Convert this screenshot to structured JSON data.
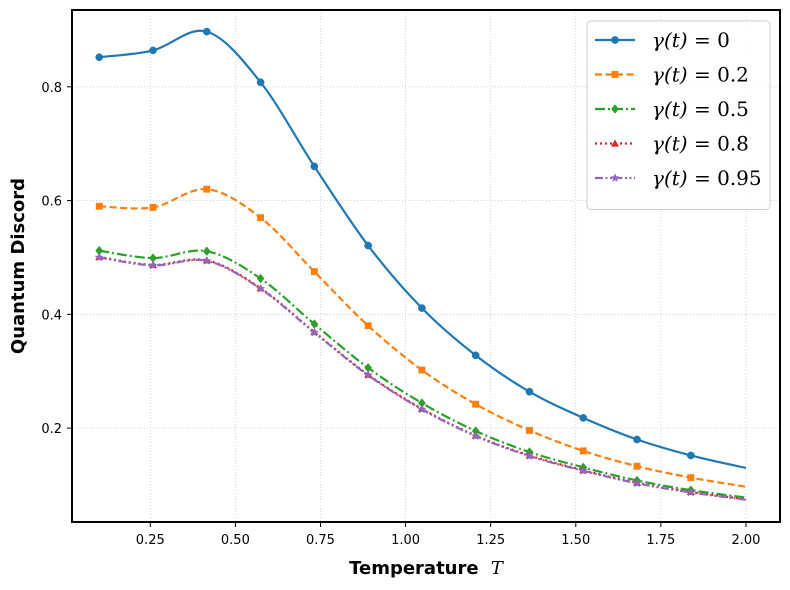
{
  "chart_data": {
    "type": "line",
    "xlabel": "Temperature",
    "xlabel_var": "T",
    "ylabel": "Quantum Discord",
    "xlim": [
      0.02,
      2.1
    ],
    "ylim": [
      0.035,
      0.935
    ],
    "xticks": [
      0.25,
      0.5,
      0.75,
      1.0,
      1.25,
      1.5,
      1.75,
      2.0
    ],
    "xtick_labels": [
      "0.25",
      "0.50",
      "0.75",
      "1.00",
      "1.25",
      "1.50",
      "1.75",
      "2.00"
    ],
    "yticks": [
      0.2,
      0.4,
      0.6,
      0.8
    ],
    "ytick_labels": [
      "0.2",
      "0.4",
      "0.6",
      "0.8"
    ],
    "grid": true,
    "legend_position": "top-right",
    "x": [
      0.1,
      0.258,
      0.416,
      0.574,
      0.732,
      0.89,
      1.048,
      1.206,
      1.364,
      1.522,
      1.68,
      1.838,
      2.0
    ],
    "series": [
      {
        "name": "γ(t) = 0",
        "legend_var": "γ(t)",
        "legend_value": "0",
        "color": "#1f77b4",
        "dash": "solid",
        "marker": "circle",
        "values": [
          0.852,
          0.864,
          0.897,
          0.808,
          0.66,
          0.521,
          0.411,
          0.328,
          0.264,
          0.218,
          0.18,
          0.152,
          0.13
        ]
      },
      {
        "name": "γ(t) = 0.2",
        "legend_var": "γ(t)",
        "legend_value": "0.2",
        "color": "#ff7f0e",
        "dash": "dashed",
        "marker": "square",
        "values": [
          0.59,
          0.588,
          0.62,
          0.57,
          0.475,
          0.38,
          0.302,
          0.242,
          0.196,
          0.16,
          0.133,
          0.113,
          0.097
        ]
      },
      {
        "name": "γ(t) = 0.5",
        "legend_var": "γ(t)",
        "legend_value": "0.5",
        "color": "#2ca02c",
        "dash": "dashdot",
        "marker": "diamond",
        "values": [
          0.512,
          0.499,
          0.511,
          0.463,
          0.383,
          0.306,
          0.244,
          0.195,
          0.158,
          0.131,
          0.108,
          0.091,
          0.078
        ]
      },
      {
        "name": "γ(t) = 0.8",
        "legend_var": "γ(t)",
        "legend_value": "0.8",
        "color": "#d62728",
        "dash": "dotted",
        "marker": "triangle",
        "values": [
          0.501,
          0.487,
          0.495,
          0.446,
          0.369,
          0.294,
          0.234,
          0.187,
          0.152,
          0.126,
          0.104,
          0.088,
          0.075
        ]
      },
      {
        "name": "γ(t) = 0.95",
        "legend_var": "γ(t)",
        "legend_value": "0.95",
        "color": "#9467bd",
        "dash": "dashdotdot",
        "marker": "star",
        "values": [
          0.5,
          0.486,
          0.494,
          0.445,
          0.368,
          0.293,
          0.233,
          0.186,
          0.151,
          0.125,
          0.103,
          0.087,
          0.074
        ]
      }
    ]
  }
}
